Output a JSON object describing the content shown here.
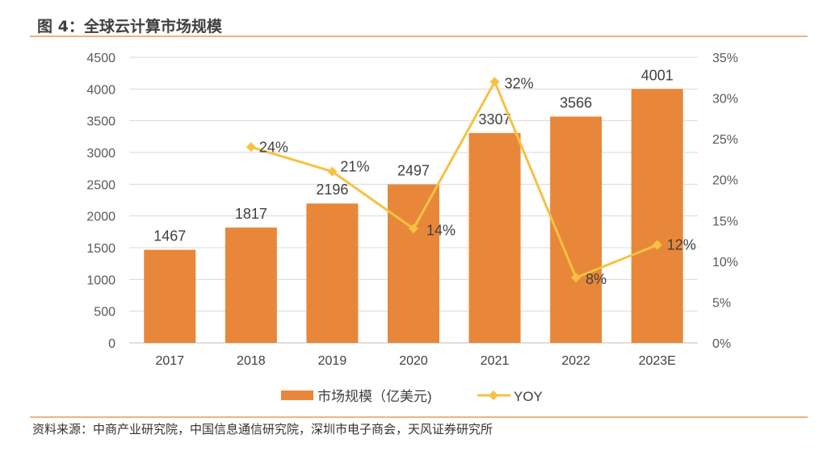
{
  "title": "图 4：全球云计算市场规模",
  "source": "资料来源：中商产业研究院，中国信息通信研究院，深圳市电子商会，天风证券研究所",
  "chart_data": {
    "type": "bar+line",
    "categories": [
      "2017",
      "2018",
      "2019",
      "2020",
      "2021",
      "2022",
      "2023E"
    ],
    "series": [
      {
        "name": "市场规模（亿美元)",
        "type": "bar",
        "axis": "left",
        "color": "#e8873a",
        "values": [
          1467,
          1817,
          2196,
          2497,
          3307,
          3566,
          4001
        ],
        "labels": [
          "1467",
          "1817",
          "2196",
          "2497",
          "3307",
          "3566",
          "4001"
        ]
      },
      {
        "name": "YOY",
        "type": "line",
        "axis": "right",
        "color": "#f5c242",
        "values": [
          null,
          24,
          21,
          14,
          32,
          8,
          12
        ],
        "labels": [
          "",
          "24%",
          "21%",
          "14%",
          "32%",
          "8%",
          "12%"
        ]
      }
    ],
    "left_axis": {
      "ylim": [
        0,
        4500
      ],
      "ticks": [
        "0",
        "500",
        "1000",
        "1500",
        "2000",
        "2500",
        "3000",
        "3500",
        "4000",
        "4500"
      ]
    },
    "right_axis": {
      "ylim": [
        0,
        35
      ],
      "ticks": [
        "0%",
        "5%",
        "10%",
        "15%",
        "20%",
        "25%",
        "30%",
        "35%"
      ]
    },
    "grid": true,
    "legend": "bottom"
  }
}
